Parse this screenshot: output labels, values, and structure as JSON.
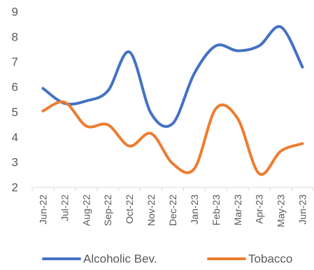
{
  "chart_data": {
    "type": "line",
    "categories": [
      "Jun-22",
      "Jul-22",
      "Aug-22",
      "Sep-22",
      "Oct-22",
      "Nov-22",
      "Dec-22",
      "Jan-23",
      "Feb-23",
      "Mar-23",
      "Apr-23",
      "May-23",
      "Jun-23"
    ],
    "ylim": [
      2,
      9
    ],
    "yticks": [
      "2",
      "3",
      "4",
      "5",
      "6",
      "7",
      "8",
      "9"
    ],
    "grid": false,
    "legend_position": "bottom",
    "series": [
      {
        "name": "Alcoholic Bev.",
        "color": "#4472C4",
        "values": [
          5.95,
          5.35,
          5.45,
          5.85,
          7.4,
          4.95,
          4.55,
          6.55,
          7.65,
          7.45,
          7.65,
          8.4,
          6.8
        ]
      },
      {
        "name": "Tobacco",
        "color": "#ED7D31",
        "values": [
          5.05,
          5.4,
          4.45,
          4.5,
          3.65,
          4.15,
          2.95,
          2.75,
          5.15,
          4.75,
          2.55,
          3.45,
          3.75
        ]
      }
    ]
  }
}
